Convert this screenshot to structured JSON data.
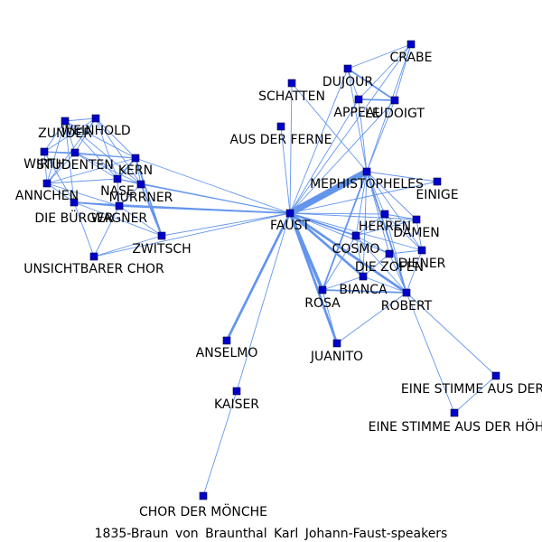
{
  "caption": "1835-Braun von Braunthal Karl Johann-Faust-speakers",
  "colors": {
    "edge": "#6495ED",
    "node": "#0000CD",
    "text": "#000000"
  },
  "nodes": [
    {
      "id": "FAUST",
      "label": "FAUST"
    },
    {
      "id": "MEPHISTOPHELES",
      "label": "MEPHISTOPHELES"
    },
    {
      "id": "CRABE",
      "label": "CRABE"
    },
    {
      "id": "DUJOUR",
      "label": "DUJOUR"
    },
    {
      "id": "APPEAU",
      "label": "APPEAU"
    },
    {
      "id": "LEDOIGT",
      "label": "LE DOIGT"
    },
    {
      "id": "SCHATTEN",
      "label": "SCHATTEN"
    },
    {
      "id": "AUSDERFERNE",
      "label": "AUS DER FERNE"
    },
    {
      "id": "EINIGE",
      "label": "EINIGE"
    },
    {
      "id": "HERREN",
      "label": "HERREN"
    },
    {
      "id": "DAMEN",
      "label": "DAMEN"
    },
    {
      "id": "COSMO",
      "label": "COSMO"
    },
    {
      "id": "DIENER",
      "label": "DIENER"
    },
    {
      "id": "DIEZOFEN",
      "label": "DIE ZOFEN"
    },
    {
      "id": "BIANCA",
      "label": "BIANCA"
    },
    {
      "id": "ROSA",
      "label": "ROSA"
    },
    {
      "id": "ROBERT",
      "label": "ROBERT"
    },
    {
      "id": "JUANITO",
      "label": "JUANITO"
    },
    {
      "id": "ANSELMO",
      "label": "ANSELMO"
    },
    {
      "id": "KAISER",
      "label": "KAISER"
    },
    {
      "id": "CHORMOENCHE",
      "label": "CHOR DER MÖNCHE"
    },
    {
      "id": "STIMME1",
      "label": "EINE STIMME AUS DER"
    },
    {
      "id": "STIMME2",
      "label": "EINE STIMME AUS DER HÖH"
    },
    {
      "id": "ZUNDER",
      "label": "ZUNDER"
    },
    {
      "id": "WEINHOLD",
      "label": "WEINHOLD"
    },
    {
      "id": "WIRTH",
      "label": "WIRTH"
    },
    {
      "id": "STUDENTEN",
      "label": "STUDENTEN"
    },
    {
      "id": "KERN",
      "label": "KERN"
    },
    {
      "id": "NASE",
      "label": "NASE"
    },
    {
      "id": "MURRNER",
      "label": "MURRNER"
    },
    {
      "id": "ANNCHEN",
      "label": "ANNCHEN"
    },
    {
      "id": "DIEBUERGER",
      "label": "DIE BÜRGER"
    },
    {
      "id": "WAGNER",
      "label": "WAGNER"
    },
    {
      "id": "ZWITSCH",
      "label": "ZWITSCH"
    },
    {
      "id": "UNSICHTBARER",
      "label": "UNSICHTBARER CHOR"
    }
  ],
  "edges": [
    {
      "source": "FAUST",
      "target": "MEPHISTOPHELES",
      "weight": 8
    },
    {
      "source": "FAUST",
      "target": "ROSA",
      "weight": 4
    },
    {
      "source": "FAUST",
      "target": "JUANITO",
      "weight": 3
    },
    {
      "source": "FAUST",
      "target": "ANSELMO",
      "weight": 3
    },
    {
      "source": "FAUST",
      "target": "BIANCA",
      "weight": 3
    },
    {
      "source": "FAUST",
      "target": "ROBERT",
      "weight": 3
    },
    {
      "source": "FAUST",
      "target": "COSMO",
      "weight": 2
    },
    {
      "source": "FAUST",
      "target": "HERREN",
      "weight": 1
    },
    {
      "source": "FAUST",
      "target": "DAMEN",
      "weight": 1
    },
    {
      "source": "FAUST",
      "target": "DIENER",
      "weight": 1
    },
    {
      "source": "FAUST",
      "target": "DIEZOFEN",
      "weight": 1
    },
    {
      "source": "FAUST",
      "target": "EINIGE",
      "weight": 1
    },
    {
      "source": "FAUST",
      "target": "SCHATTEN",
      "weight": 1
    },
    {
      "source": "FAUST",
      "target": "AUSDERFERNE",
      "weight": 1
    },
    {
      "source": "FAUST",
      "target": "KAISER",
      "weight": 1
    },
    {
      "source": "FAUST",
      "target": "WAGNER",
      "weight": 2
    },
    {
      "source": "FAUST",
      "target": "ZWITSCH",
      "weight": 1
    },
    {
      "source": "FAUST",
      "target": "MURRNER",
      "weight": 1
    },
    {
      "source": "FAUST",
      "target": "KERN",
      "weight": 1
    },
    {
      "source": "FAUST",
      "target": "NASE",
      "weight": 1
    },
    {
      "source": "FAUST",
      "target": "DIEBUERGER",
      "weight": 1
    },
    {
      "source": "FAUST",
      "target": "UNSICHTBARER",
      "weight": 1
    },
    {
      "source": "FAUST",
      "target": "APPEAU",
      "weight": 1
    },
    {
      "source": "FAUST",
      "target": "DUJOUR",
      "weight": 1
    },
    {
      "source": "FAUST",
      "target": "LEDOIGT",
      "weight": 1
    },
    {
      "source": "FAUST",
      "target": "CRABE",
      "weight": 1
    },
    {
      "source": "MEPHISTOPHELES",
      "target": "ROSA",
      "weight": 2
    },
    {
      "source": "MEPHISTOPHELES",
      "target": "ROBERT",
      "weight": 2
    },
    {
      "source": "MEPHISTOPHELES",
      "target": "COSMO",
      "weight": 1
    },
    {
      "source": "MEPHISTOPHELES",
      "target": "BIANCA",
      "weight": 1
    },
    {
      "source": "MEPHISTOPHELES",
      "target": "DIENER",
      "weight": 1
    },
    {
      "source": "MEPHISTOPHELES",
      "target": "DAMEN",
      "weight": 1
    },
    {
      "source": "MEPHISTOPHELES",
      "target": "HERREN",
      "weight": 1
    },
    {
      "source": "MEPHISTOPHELES",
      "target": "EINIGE",
      "weight": 1
    },
    {
      "source": "MEPHISTOPHELES",
      "target": "APPEAU",
      "weight": 1
    },
    {
      "source": "MEPHISTOPHELES",
      "target": "LEDOIGT",
      "weight": 1
    },
    {
      "source": "MEPHISTOPHELES",
      "target": "DUJOUR",
      "weight": 1
    },
    {
      "source": "MEPHISTOPHELES",
      "target": "CRABE",
      "weight": 1
    },
    {
      "source": "MEPHISTOPHELES",
      "target": "SCHATTEN",
      "weight": 1
    },
    {
      "source": "MEPHISTOPHELES",
      "target": "DIEZOFEN",
      "weight": 1
    },
    {
      "source": "DUJOUR",
      "target": "CRABE",
      "weight": 1
    },
    {
      "source": "DUJOUR",
      "target": "APPEAU",
      "weight": 1
    },
    {
      "source": "DUJOUR",
      "target": "LEDOIGT",
      "weight": 2
    },
    {
      "source": "APPEAU",
      "target": "LEDOIGT",
      "weight": 2
    },
    {
      "source": "APPEAU",
      "target": "CRABE",
      "weight": 1
    },
    {
      "source": "LEDOIGT",
      "target": "CRABE",
      "weight": 1
    },
    {
      "source": "HERREN",
      "target": "DAMEN",
      "weight": 1
    },
    {
      "source": "HERREN",
      "target": "COSMO",
      "weight": 1
    },
    {
      "source": "HERREN",
      "target": "DIENER",
      "weight": 1
    },
    {
      "source": "HERREN",
      "target": "ROBERT",
      "weight": 1
    },
    {
      "source": "DAMEN",
      "target": "DIENER",
      "weight": 1
    },
    {
      "source": "DAMEN",
      "target": "COSMO",
      "weight": 1
    },
    {
      "source": "COSMO",
      "target": "DIEZOFEN",
      "weight": 1
    },
    {
      "source": "COSMO",
      "target": "BIANCA",
      "weight": 1
    },
    {
      "source": "COSMO",
      "target": "ROBERT",
      "weight": 1
    },
    {
      "source": "COSMO",
      "target": "ROSA",
      "weight": 1
    },
    {
      "source": "DIEZOFEN",
      "target": "DIENER",
      "weight": 1
    },
    {
      "source": "DIEZOFEN",
      "target": "ROBERT",
      "weight": 1
    },
    {
      "source": "DIEZOFEN",
      "target": "BIANCA",
      "weight": 1
    },
    {
      "source": "BIANCA",
      "target": "ROBERT",
      "weight": 1
    },
    {
      "source": "ROSA",
      "target": "ROBERT",
      "weight": 2
    },
    {
      "source": "ROSA",
      "target": "BIANCA",
      "weight": 1
    },
    {
      "source": "ROSA",
      "target": "JUANITO",
      "weight": 1
    },
    {
      "source": "ROBERT",
      "target": "JUANITO",
      "weight": 1
    },
    {
      "source": "ROBERT",
      "target": "DIENER",
      "weight": 1
    },
    {
      "source": "ROBERT",
      "target": "STIMME1",
      "weight": 1
    },
    {
      "source": "ROBERT",
      "target": "STIMME2",
      "weight": 1
    },
    {
      "source": "STIMME1",
      "target": "STIMME2",
      "weight": 1
    },
    {
      "source": "ANSELMO",
      "target": "FAUST",
      "weight": 1
    },
    {
      "source": "KAISER",
      "target": "CHORMOENCHE",
      "weight": 1
    },
    {
      "source": "ZUNDER",
      "target": "WEINHOLD",
      "weight": 1
    },
    {
      "source": "ZUNDER",
      "target": "WIRTH",
      "weight": 1
    },
    {
      "source": "ZUNDER",
      "target": "STUDENTEN",
      "weight": 1
    },
    {
      "source": "ZUNDER",
      "target": "KERN",
      "weight": 1
    },
    {
      "source": "ZUNDER",
      "target": "NASE",
      "weight": 1
    },
    {
      "source": "ZUNDER",
      "target": "ANNCHEN",
      "weight": 1
    },
    {
      "source": "ZUNDER",
      "target": "DIEBUERGER",
      "weight": 1
    },
    {
      "source": "ZUNDER",
      "target": "MURRNER",
      "weight": 1
    },
    {
      "source": "WEINHOLD",
      "target": "WIRTH",
      "weight": 1
    },
    {
      "source": "WEINHOLD",
      "target": "STUDENTEN",
      "weight": 1
    },
    {
      "source": "WEINHOLD",
      "target": "KERN",
      "weight": 1
    },
    {
      "source": "WEINHOLD",
      "target": "NASE",
      "weight": 1
    },
    {
      "source": "WEINHOLD",
      "target": "ANNCHEN",
      "weight": 1
    },
    {
      "source": "WEINHOLD",
      "target": "MURRNER",
      "weight": 1
    },
    {
      "source": "WIRTH",
      "target": "STUDENTEN",
      "weight": 1
    },
    {
      "source": "WIRTH",
      "target": "ANNCHEN",
      "weight": 1
    },
    {
      "source": "WIRTH",
      "target": "KERN",
      "weight": 1
    },
    {
      "source": "WIRTH",
      "target": "DIEBUERGER",
      "weight": 1
    },
    {
      "source": "STUDENTEN",
      "target": "KERN",
      "weight": 1
    },
    {
      "source": "STUDENTEN",
      "target": "NASE",
      "weight": 1
    },
    {
      "source": "STUDENTEN",
      "target": "ANNCHEN",
      "weight": 1
    },
    {
      "source": "STUDENTEN",
      "target": "MURRNER",
      "weight": 1
    },
    {
      "source": "KERN",
      "target": "NASE",
      "weight": 2
    },
    {
      "source": "KERN",
      "target": "MURRNER",
      "weight": 1
    },
    {
      "source": "KERN",
      "target": "ZWITSCH",
      "weight": 2
    },
    {
      "source": "KERN",
      "target": "ANNCHEN",
      "weight": 1
    },
    {
      "source": "NASE",
      "target": "MURRNER",
      "weight": 1
    },
    {
      "source": "NASE",
      "target": "WAGNER",
      "weight": 1
    },
    {
      "source": "NASE",
      "target": "ANNCHEN",
      "weight": 1
    },
    {
      "source": "MURRNER",
      "target": "ZWITSCH",
      "weight": 2
    },
    {
      "source": "MURRNER",
      "target": "WAGNER",
      "weight": 1
    },
    {
      "source": "ANNCHEN",
      "target": "DIEBUERGER",
      "weight": 1
    },
    {
      "source": "ANNCHEN",
      "target": "WAGNER",
      "weight": 1
    },
    {
      "source": "DIEBUERGER",
      "target": "WAGNER",
      "weight": 2
    },
    {
      "source": "DIEBUERGER",
      "target": "UNSICHTBARER",
      "weight": 1
    },
    {
      "source": "DIEBUERGER",
      "target": "ZWITSCH",
      "weight": 1
    },
    {
      "source": "WAGNER",
      "target": "ZWITSCH",
      "weight": 1
    },
    {
      "source": "WAGNER",
      "target": "UNSICHTBARER",
      "weight": 1
    },
    {
      "source": "ZWITSCH",
      "target": "UNSICHTBARER",
      "weight": 1
    }
  ]
}
